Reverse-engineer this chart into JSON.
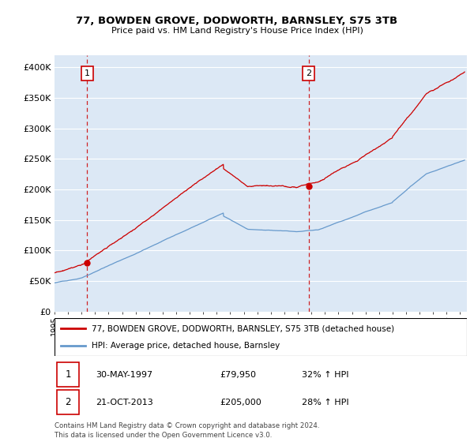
{
  "title": "77, BOWDEN GROVE, DODWORTH, BARNSLEY, S75 3TB",
  "subtitle": "Price paid vs. HM Land Registry's House Price Index (HPI)",
  "ylim": [
    0,
    420000
  ],
  "xlim_start": 1995.0,
  "xlim_end": 2025.5,
  "transaction1_date": 1997.41,
  "transaction1_price": 79950,
  "transaction1_label": "1",
  "transaction1_text": "30-MAY-1997",
  "transaction1_amount": "£79,950",
  "transaction1_hpi": "32% ↑ HPI",
  "transaction2_date": 2013.81,
  "transaction2_price": 205000,
  "transaction2_label": "2",
  "transaction2_text": "21-OCT-2013",
  "transaction2_amount": "£205,000",
  "transaction2_hpi": "28% ↑ HPI",
  "property_label": "77, BOWDEN GROVE, DODWORTH, BARNSLEY, S75 3TB (detached house)",
  "hpi_label": "HPI: Average price, detached house, Barnsley",
  "footer": "Contains HM Land Registry data © Crown copyright and database right 2024.\nThis data is licensed under the Open Government Licence v3.0.",
  "property_color": "#cc0000",
  "hpi_color": "#6699cc",
  "plot_bg_color": "#dce8f5",
  "grid_color": "#ffffff",
  "dashed_line_color": "#cc0000"
}
